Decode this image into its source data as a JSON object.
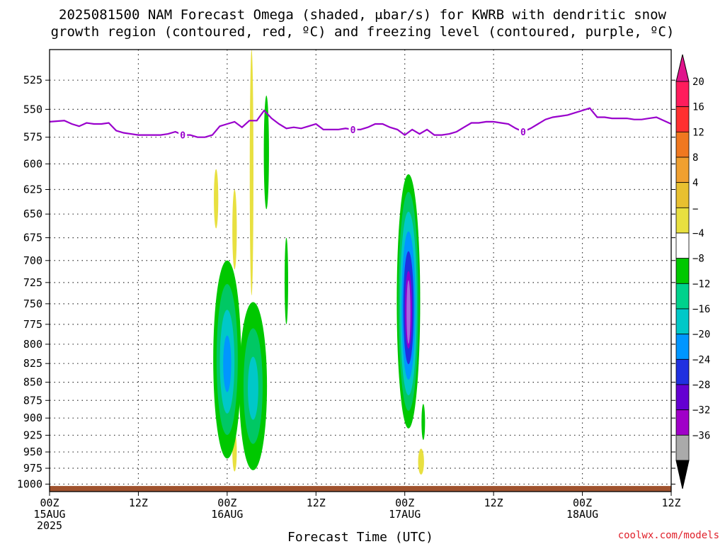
{
  "chart_data": {
    "type": "heatmap",
    "title_lines": [
      "2025081500 NAM Forecast Omega (shaded, μbar/s) for KWRB with dendritic snow",
      "growth region (contoured, red, ºC) and freezing level (contoured, purple, ºC)"
    ],
    "xlabel": "Forecast Time (UTC)",
    "credit": "coolwx.com/models",
    "x_hours": {
      "min": 0,
      "max": 84
    },
    "x_ticks": [
      {
        "h": 0,
        "lines": [
          "00Z",
          "15AUG",
          "2025"
        ]
      },
      {
        "h": 12,
        "lines": [
          "12Z"
        ]
      },
      {
        "h": 24,
        "lines": [
          "00Z",
          "16AUG"
        ]
      },
      {
        "h": 36,
        "lines": [
          "12Z"
        ]
      },
      {
        "h": 48,
        "lines": [
          "00Z",
          "17AUG"
        ]
      },
      {
        "h": 60,
        "lines": [
          "12Z"
        ]
      },
      {
        "h": 72,
        "lines": [
          "00Z",
          "18AUG"
        ]
      },
      {
        "h": 84,
        "lines": [
          "12Z"
        ]
      }
    ],
    "y_pressure": {
      "top": 500,
      "bottom": 1012,
      "scale": "log",
      "reversed": true
    },
    "y_ticks": [
      525,
      550,
      575,
      600,
      625,
      650,
      675,
      700,
      725,
      750,
      775,
      800,
      825,
      850,
      875,
      900,
      925,
      950,
      975,
      1000
    ],
    "grid": "dotted",
    "freezing_level": {
      "color": "#9900cc",
      "label": "0",
      "label_hours": [
        18,
        41,
        64
      ],
      "points": [
        [
          0,
          561
        ],
        [
          2,
          560
        ],
        [
          3,
          563
        ],
        [
          4,
          565
        ],
        [
          5,
          562
        ],
        [
          6,
          563
        ],
        [
          7,
          563
        ],
        [
          8,
          562
        ],
        [
          9,
          569
        ],
        [
          10,
          571
        ],
        [
          11,
          572
        ],
        [
          12,
          573
        ],
        [
          13,
          573
        ],
        [
          14,
          573
        ],
        [
          15,
          573
        ],
        [
          16,
          572
        ],
        [
          17,
          570
        ],
        [
          18,
          573
        ],
        [
          19,
          573
        ],
        [
          20,
          575
        ],
        [
          21,
          575
        ],
        [
          22,
          573
        ],
        [
          23,
          565
        ],
        [
          24,
          563
        ],
        [
          25,
          561
        ],
        [
          26,
          566
        ],
        [
          27,
          560
        ],
        [
          28,
          560
        ],
        [
          29,
          551
        ],
        [
          30,
          558
        ],
        [
          31,
          563
        ],
        [
          32,
          567
        ],
        [
          33,
          566
        ],
        [
          34,
          567
        ],
        [
          35,
          565
        ],
        [
          36,
          563
        ],
        [
          37,
          568
        ],
        [
          38,
          568
        ],
        [
          39,
          568
        ],
        [
          40,
          567
        ],
        [
          41,
          568
        ],
        [
          42,
          568
        ],
        [
          43,
          566
        ],
        [
          44,
          563
        ],
        [
          45,
          563
        ],
        [
          46,
          566
        ],
        [
          47,
          568
        ],
        [
          48,
          573
        ],
        [
          49,
          568
        ],
        [
          50,
          572
        ],
        [
          51,
          568
        ],
        [
          52,
          573
        ],
        [
          53,
          573
        ],
        [
          54,
          572
        ],
        [
          55,
          570
        ],
        [
          56,
          566
        ],
        [
          57,
          562
        ],
        [
          58,
          562
        ],
        [
          59,
          561
        ],
        [
          60,
          561
        ],
        [
          61,
          562
        ],
        [
          62,
          563
        ],
        [
          63,
          567
        ],
        [
          64,
          570
        ],
        [
          65,
          567
        ],
        [
          66,
          563
        ],
        [
          67,
          559
        ],
        [
          68,
          557
        ],
        [
          69,
          556
        ],
        [
          70,
          555
        ],
        [
          71,
          553
        ],
        [
          72,
          551
        ],
        [
          73,
          549
        ],
        [
          74,
          557
        ],
        [
          75,
          557
        ],
        [
          76,
          558
        ],
        [
          77,
          558
        ],
        [
          78,
          558
        ],
        [
          79,
          559
        ],
        [
          80,
          559
        ],
        [
          81,
          558
        ],
        [
          82,
          557
        ],
        [
          83,
          560
        ],
        [
          84,
          563
        ]
      ]
    },
    "ground": {
      "color": "#a0522d",
      "top_pressure": 1003
    },
    "omega_features": [
      {
        "kind": "yellow",
        "h": 22.5,
        "pmin": 605,
        "pmax": 665,
        "w": 0.6
      },
      {
        "kind": "yellow",
        "h": 25.0,
        "pmin": 625,
        "pmax": 710,
        "w": 0.6
      },
      {
        "kind": "yellow",
        "h": 27.3,
        "pmin": 500,
        "pmax": 740,
        "w": 0.5
      },
      {
        "kind": "green",
        "h": 29.3,
        "pmin": 538,
        "pmax": 645,
        "w": 0.7
      },
      {
        "kind": "green",
        "h": 32.0,
        "pmin": 675,
        "pmax": 775,
        "w": 0.4
      },
      {
        "kind": "yellow",
        "h": 25.0,
        "pmin": 920,
        "pmax": 980,
        "w": 0.6
      },
      {
        "kind": "yellow",
        "h": 50.2,
        "pmin": 945,
        "pmax": 985,
        "w": 0.8
      },
      {
        "kind": "green",
        "h": 50.5,
        "pmin": 880,
        "pmax": 932,
        "w": 0.4
      },
      {
        "kind": "wide",
        "h": 24.0,
        "pmin": 700,
        "pmax": 960,
        "w": 3.0,
        "cores": [
          "#00c864",
          "#00c8c8",
          "#0096ff"
        ]
      },
      {
        "kind": "wide",
        "h": 27.5,
        "pmin": 748,
        "pmax": 978,
        "w": 3.0,
        "cores": [
          "#00c864",
          "#00c8c8"
        ]
      },
      {
        "kind": "wide",
        "h": 48.5,
        "pmin": 610,
        "pmax": 915,
        "w": 2.4,
        "cores": [
          "#00c864",
          "#00c8c8",
          "#0096ff",
          "#2030e0",
          "#8c00d2",
          "#aa66dd"
        ]
      }
    ],
    "colorbar": {
      "labels": [
        "20",
        "16",
        "12",
        "8",
        "4",
        "−",
        "−4",
        "−8",
        "−12",
        "−16",
        "−20",
        "−24",
        "−28",
        "−32",
        "−36"
      ],
      "colors": [
        "#ff1c5c",
        "#ff3030",
        "#f07820",
        "#f0a030",
        "#e8c030",
        "#e8e040",
        "#ffffff",
        "#00c800",
        "#00d28c",
        "#00c8c8",
        "#0096ff",
        "#2030e0",
        "#6400d2",
        "#a000c8",
        "#aaaaaa"
      ],
      "top_color": "#e0148c",
      "bottom_color": "#000000"
    }
  }
}
